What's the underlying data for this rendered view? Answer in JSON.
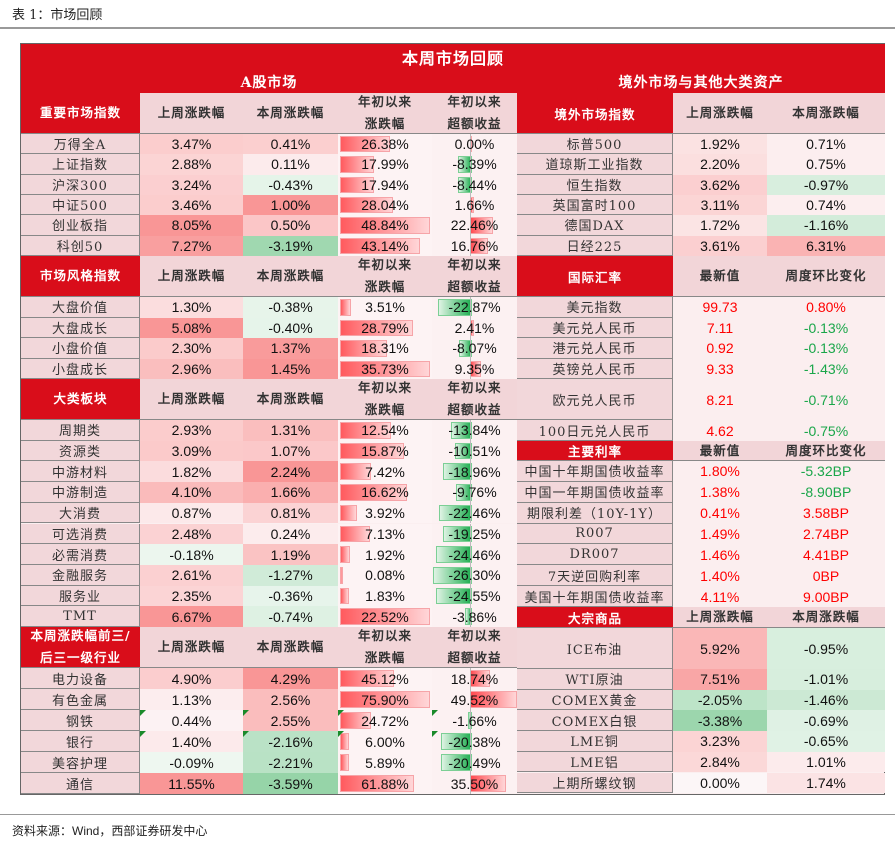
{
  "caption": "表 1：市场回顾",
  "title": "本周市场回顾",
  "left_title": "A股市场",
  "right_title": "境外市场与其他大类资产",
  "source": "资料来源：Wind，西部证券研发中心",
  "colors": {
    "brand_red": "#d90d1a",
    "up": "#ff0000",
    "down": "#1aa64a"
  },
  "left_sections": [
    {
      "header": [
        "重要市场指数",
        "上周涨跌幅",
        "本周涨跌幅",
        "年初以来\n涨跌幅",
        "年初以来\n超额收益"
      ],
      "rows": [
        [
          "万得全A",
          "3.47%",
          "0.41%",
          "26.38%",
          "0.00%"
        ],
        [
          "上证指数",
          "2.88%",
          "0.11%",
          "17.99%",
          "-8.39%"
        ],
        [
          "沪深300",
          "3.24%",
          "-0.43%",
          "17.94%",
          "-8.44%"
        ],
        [
          "中证500",
          "3.46%",
          "1.00%",
          "28.04%",
          "1.66%"
        ],
        [
          "创业板指",
          "8.05%",
          "0.50%",
          "48.84%",
          "22.46%"
        ],
        [
          "科创50",
          "7.27%",
          "-3.19%",
          "43.14%",
          "16.76%"
        ]
      ]
    },
    {
      "header": [
        "市场风格指数",
        "上周涨跌幅",
        "本周涨跌幅",
        "年初以来\n涨跌幅",
        "年初以来\n超额收益"
      ],
      "rows": [
        [
          "大盘价值",
          "1.30%",
          "-0.38%",
          "3.51%",
          "-22.87%"
        ],
        [
          "大盘成长",
          "5.08%",
          "-0.40%",
          "28.79%",
          "2.41%"
        ],
        [
          "小盘价值",
          "2.30%",
          "1.37%",
          "18.31%",
          "-8.07%"
        ],
        [
          "小盘成长",
          "2.96%",
          "1.45%",
          "35.73%",
          "9.35%"
        ]
      ]
    },
    {
      "header": [
        "大类板块",
        "上周涨跌幅",
        "本周涨跌幅",
        "年初以来\n涨跌幅",
        "年初以来\n超额收益"
      ],
      "rows": [
        [
          "周期类",
          "2.93%",
          "1.31%",
          "12.54%",
          "-13.84%"
        ],
        [
          "资源类",
          "3.09%",
          "1.07%",
          "15.87%",
          "-10.51%"
        ],
        [
          "中游材料",
          "1.82%",
          "2.24%",
          "7.42%",
          "-18.96%"
        ],
        [
          "中游制造",
          "4.10%",
          "1.66%",
          "16.62%",
          "-9.76%"
        ],
        [
          "大消费",
          "0.87%",
          "0.81%",
          "3.92%",
          "-22.46%"
        ],
        [
          "可选消费",
          "2.48%",
          "0.24%",
          "7.13%",
          "-19.25%"
        ],
        [
          "必需消费",
          "-0.18%",
          "1.19%",
          "1.92%",
          "-24.46%"
        ],
        [
          "金融服务",
          "2.61%",
          "-1.27%",
          "0.08%",
          "-26.30%"
        ],
        [
          "服务业",
          "2.35%",
          "-0.36%",
          "1.83%",
          "-24.55%"
        ],
        [
          "TMT",
          "6.67%",
          "-0.74%",
          "22.52%",
          "-3.86%"
        ]
      ]
    },
    {
      "header": [
        "本周涨跌幅前三/\n后三一级行业",
        "上周涨跌幅",
        "本周涨跌幅",
        "年初以来\n涨跌幅",
        "年初以来\n超额收益"
      ],
      "rows": [
        [
          "电力设备",
          "4.90%",
          "4.29%",
          "45.12%",
          "18.74%"
        ],
        [
          "有色金属",
          "1.13%",
          "2.56%",
          "75.90%",
          "49.52%"
        ],
        [
          "钢铁",
          "0.44%",
          "2.55%",
          "24.72%",
          "-1.66%"
        ],
        [
          "银行",
          "1.40%",
          "-2.16%",
          "6.00%",
          "-20.38%"
        ],
        [
          "美容护理",
          "-0.09%",
          "-2.21%",
          "5.89%",
          "-20.49%"
        ],
        [
          "通信",
          "11.55%",
          "-3.59%",
          "61.88%",
          "35.50%"
        ]
      ]
    }
  ],
  "right_sections": [
    {
      "header": [
        "境外市场指数",
        "上周涨跌幅",
        "本周涨跌幅"
      ],
      "mode": "heat",
      "rows": [
        [
          "标普500",
          "1.92%",
          "0.71%"
        ],
        [
          "道琼斯工业指数",
          "2.20%",
          "0.75%"
        ],
        [
          "恒生指数",
          "3.62%",
          "-0.97%"
        ],
        [
          "英国富时100",
          "3.11%",
          "0.74%"
        ],
        [
          "德国DAX",
          "1.72%",
          "-1.16%"
        ],
        [
          "日经225",
          "3.61%",
          "6.31%"
        ]
      ]
    },
    {
      "header": [
        "国际汇率",
        "最新值",
        "周度环比变化"
      ],
      "mode": "text",
      "rows": [
        [
          "美元指数",
          "99.73",
          "0.80%"
        ],
        [
          "美元兑人民币",
          "7.11",
          "-0.13%"
        ],
        [
          "港元兑人民币",
          "0.92",
          "-0.13%"
        ],
        [
          "英镑兑人民币",
          "9.33",
          "-1.43%"
        ],
        [
          "欧元兑人民币",
          "8.21",
          "-0.71%"
        ],
        [
          "100日元兑人民币",
          "4.62",
          "-0.75%"
        ]
      ]
    },
    {
      "header": [
        "主要利率",
        "最新值",
        "周度环比变化"
      ],
      "mode": "text",
      "rows": [
        [
          "中国十年期国债收益率",
          "1.80%",
          "-5.32BP"
        ],
        [
          "中国一年期国债收益率",
          "1.38%",
          "-8.90BP"
        ],
        [
          "期限利差（10Y-1Y）",
          "0.41%",
          "3.58BP"
        ],
        [
          "R007",
          "1.49%",
          "2.74BP"
        ],
        [
          "DR007",
          "1.46%",
          "4.41BP"
        ],
        [
          "7天逆回购利率",
          "1.40%",
          "0BP"
        ],
        [
          "美国十年期国债收益率",
          "4.11%",
          "9.00BP"
        ]
      ]
    },
    {
      "header": [
        "大宗商品",
        "上周涨跌幅",
        "本周涨跌幅"
      ],
      "mode": "heat",
      "rows": [
        [
          "ICE布油",
          "5.92%",
          "-0.95%"
        ],
        [
          "WTI原油",
          "7.51%",
          "-1.01%"
        ],
        [
          "COMEX黄金",
          "-2.05%",
          "-1.46%"
        ],
        [
          "COMEX白银",
          "-3.38%",
          "-0.69%"
        ],
        [
          "LME铜",
          "3.23%",
          "-0.65%"
        ],
        [
          "LME铝",
          "2.84%",
          "1.01%"
        ],
        [
          "上期所螺纹钢",
          "0.00%",
          "1.74%"
        ]
      ]
    }
  ]
}
